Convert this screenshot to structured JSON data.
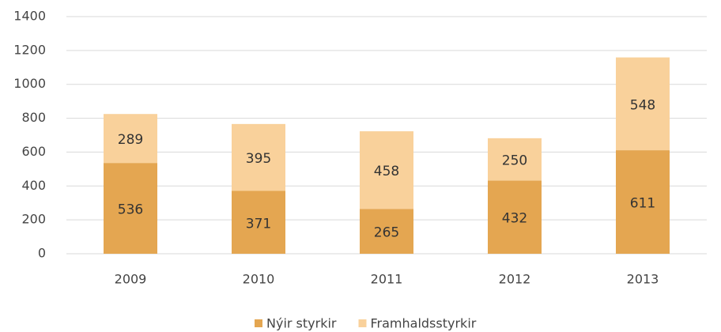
{
  "chart_data": {
    "type": "stacked_bar",
    "categories": [
      "2009",
      "2010",
      "2011",
      "2012",
      "2013"
    ],
    "series": [
      {
        "name": "Nýir styrkir",
        "color": "#e4a651",
        "values": [
          536,
          371,
          265,
          432,
          611
        ]
      },
      {
        "name": "Framhaldsstyrkir",
        "color": "#f9d19b",
        "values": [
          289,
          395,
          458,
          250,
          548
        ]
      }
    ],
    "ylim": [
      0,
      1400
    ],
    "yticks": [
      0,
      200,
      400,
      600,
      800,
      1000,
      1200,
      1400
    ],
    "grid": true,
    "legend": "bottom"
  }
}
